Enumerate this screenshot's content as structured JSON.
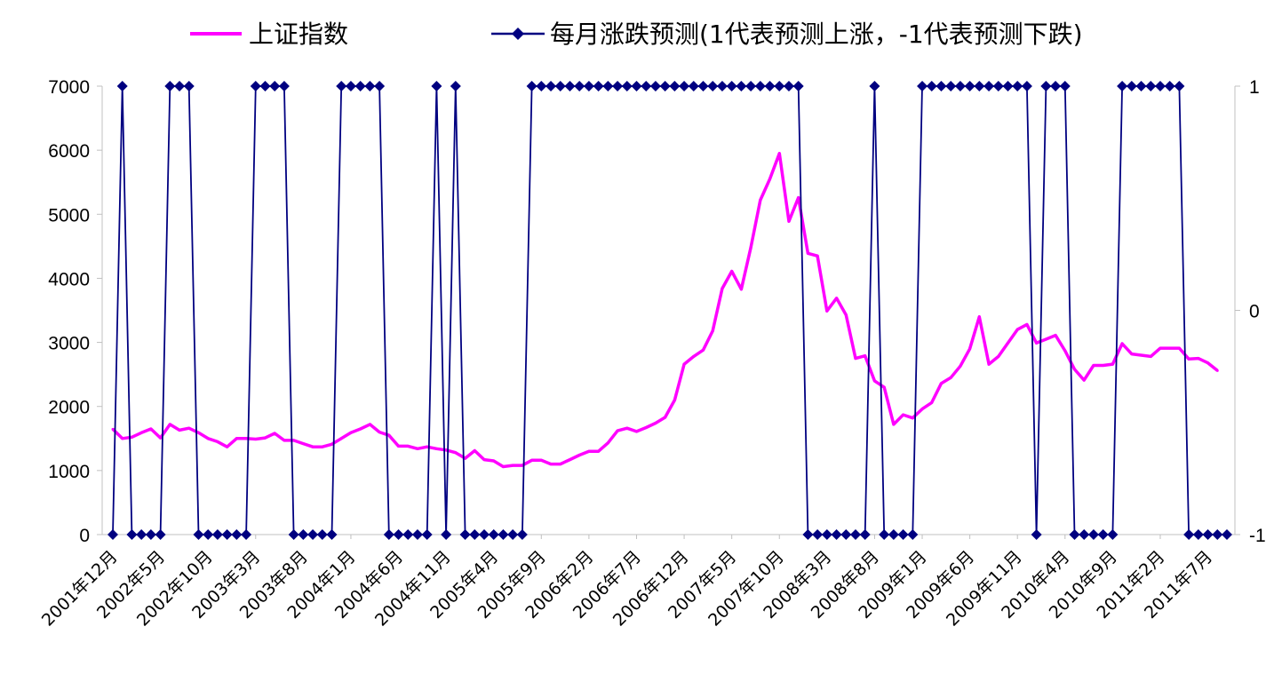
{
  "chart_data": {
    "type": "line",
    "title": "",
    "legend": {
      "placement": "top",
      "entries": [
        "上证指数",
        "每月涨跌预测(1代表预测上涨，-1代表预测下跌)"
      ]
    },
    "colors": {
      "index": "#ff00ff",
      "prediction": "#000080"
    },
    "y_left": {
      "range": [
        0,
        7000
      ],
      "ticks": [
        "0",
        "1000",
        "2000",
        "3000",
        "4000",
        "5000",
        "6000",
        "7000"
      ]
    },
    "y_right": {
      "range": [
        -1,
        1
      ],
      "ticks": [
        "-1",
        "0",
        "1"
      ]
    },
    "x_tick_labels": [
      "2001年12月",
      "2002年5月",
      "2002年10月",
      "2003年3月",
      "2003年8月",
      "2004年1月",
      "2004年6月",
      "2004年11月",
      "2005年4月",
      "2005年9月",
      "2006年2月",
      "2006年7月",
      "2006年12月",
      "2007年5月",
      "2007年10月",
      "2008年3月",
      "2008年8月",
      "2009年1月",
      "2009年6月",
      "2009年11月",
      "2010年4月",
      "2010年9月",
      "2011年2月",
      "2011年7月"
    ],
    "series": [
      {
        "name": "上证指数",
        "axis": "left",
        "values": [
          1645,
          1500,
          1520,
          1590,
          1650,
          1510,
          1720,
          1630,
          1660,
          1590,
          1500,
          1450,
          1370,
          1500,
          1500,
          1490,
          1510,
          1580,
          1470,
          1470,
          1420,
          1370,
          1370,
          1410,
          1500,
          1590,
          1650,
          1720,
          1600,
          1550,
          1380,
          1380,
          1340,
          1370,
          1340,
          1320,
          1280,
          1190,
          1310,
          1170,
          1150,
          1060,
          1080,
          1080,
          1160,
          1160,
          1100,
          1100,
          1170,
          1240,
          1300,
          1300,
          1430,
          1620,
          1660,
          1610,
          1670,
          1740,
          1830,
          2100,
          2660,
          2780,
          2880,
          3180,
          3840,
          4110,
          3830,
          4480,
          5220,
          5550,
          5950,
          4890,
          5260,
          4390,
          4350,
          3490,
          3690,
          3430,
          2750,
          2790,
          2400,
          2300,
          1720,
          1870,
          1820,
          1960,
          2060,
          2360,
          2450,
          2630,
          2900,
          3400,
          2660,
          2780,
          2990,
          3200,
          3280,
          2990,
          3050,
          3110,
          2870,
          2580,
          2410,
          2640,
          2640,
          2660,
          2980,
          2820,
          2800,
          2780,
          2910,
          2910,
          2910,
          2740,
          2750,
          2680,
          2560
        ]
      },
      {
        "name": "每月涨跌预测(1代表预测上涨，-1代表预测下跌)",
        "axis": "right",
        "values": [
          -1,
          1,
          -1,
          -1,
          -1,
          -1,
          1,
          1,
          1,
          -1,
          -1,
          -1,
          -1,
          -1,
          -1,
          1,
          1,
          1,
          1,
          -1,
          -1,
          -1,
          -1,
          -1,
          1,
          1,
          1,
          1,
          1,
          -1,
          -1,
          -1,
          -1,
          -1,
          1,
          -1,
          1,
          -1,
          -1,
          -1,
          -1,
          -1,
          -1,
          -1,
          1,
          1,
          1,
          1,
          1,
          1,
          1,
          1,
          1,
          1,
          1,
          1,
          1,
          1,
          1,
          1,
          1,
          1,
          1,
          1,
          1,
          1,
          1,
          1,
          1,
          1,
          1,
          1,
          1,
          -1,
          -1,
          -1,
          -1,
          -1,
          -1,
          -1,
          1,
          -1,
          -1,
          -1,
          -1,
          1,
          1,
          1,
          1,
          1,
          1,
          1,
          1,
          1,
          1,
          1,
          1,
          -1,
          1,
          1,
          1,
          -1,
          -1,
          -1,
          -1,
          -1,
          1,
          1,
          1,
          1,
          1,
          1,
          1,
          -1,
          -1,
          -1,
          -1,
          -1
        ]
      }
    ]
  }
}
